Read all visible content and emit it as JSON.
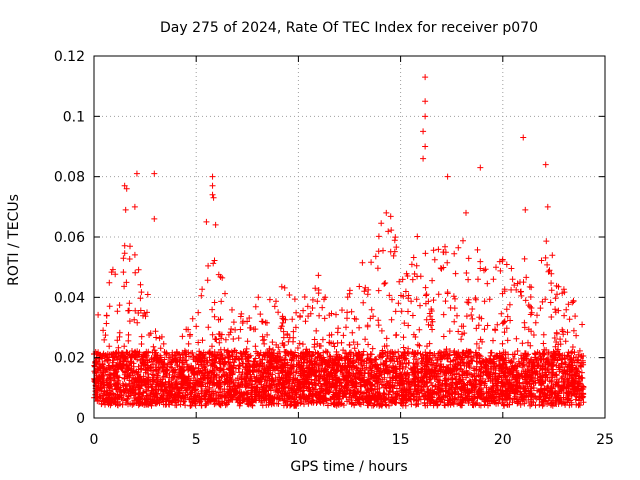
{
  "chart_data": {
    "type": "scatter",
    "title": "Day 275 of 2024, Rate Of TEC Index for receiver p070",
    "xlabel": "GPS time / hours",
    "ylabel": "ROTI / TECUs",
    "xlim": [
      0,
      25
    ],
    "ylim": [
      0,
      0.12
    ],
    "xticks": [
      "0",
      "5",
      "10",
      "15",
      "20",
      "25"
    ],
    "yticks": [
      "0",
      "0.02",
      "0.04",
      "0.06",
      "0.08",
      "0.1",
      "0.12"
    ],
    "grid": true,
    "marker": "+",
    "color": "#ff0000",
    "highlighted_points": [
      {
        "x": 16.2,
        "y": 0.113
      },
      {
        "x": 16.2,
        "y": 0.105
      },
      {
        "x": 16.2,
        "y": 0.1
      },
      {
        "x": 16.1,
        "y": 0.095
      },
      {
        "x": 16.2,
        "y": 0.09
      },
      {
        "x": 16.1,
        "y": 0.086
      },
      {
        "x": 21.0,
        "y": 0.093
      },
      {
        "x": 22.1,
        "y": 0.084
      },
      {
        "x": 18.9,
        "y": 0.083
      },
      {
        "x": 2.1,
        "y": 0.081
      },
      {
        "x": 2.95,
        "y": 0.081
      },
      {
        "x": 5.8,
        "y": 0.08
      },
      {
        "x": 17.3,
        "y": 0.08
      },
      {
        "x": 1.5,
        "y": 0.077
      },
      {
        "x": 1.6,
        "y": 0.076
      },
      {
        "x": 5.8,
        "y": 0.077
      },
      {
        "x": 5.8,
        "y": 0.074
      },
      {
        "x": 5.85,
        "y": 0.073
      },
      {
        "x": 2.0,
        "y": 0.07
      },
      {
        "x": 1.55,
        "y": 0.069
      },
      {
        "x": 2.95,
        "y": 0.066
      },
      {
        "x": 5.5,
        "y": 0.065
      },
      {
        "x": 5.95,
        "y": 0.064
      },
      {
        "x": 14.3,
        "y": 0.068
      },
      {
        "x": 18.2,
        "y": 0.068
      },
      {
        "x": 21.1,
        "y": 0.069
      },
      {
        "x": 22.2,
        "y": 0.07
      }
    ],
    "density_profile": {
      "x": [
        0,
        0.5,
        1,
        1.5,
        2,
        2.5,
        3,
        3.5,
        4,
        4.5,
        5,
        5.5,
        6,
        6.5,
        7,
        7.5,
        8,
        8.5,
        9,
        9.5,
        10,
        10.5,
        11,
        11.5,
        12,
        12.5,
        13,
        13.5,
        14,
        14.5,
        15,
        15.5,
        16,
        16.5,
        17,
        17.5,
        18,
        18.5,
        19,
        19.5,
        20,
        20.5,
        21,
        21.5,
        22,
        22.5,
        23,
        23.5,
        24
      ],
      "y_max": [
        0.032,
        0.045,
        0.05,
        0.06,
        0.055,
        0.045,
        0.035,
        0.025,
        0.022,
        0.03,
        0.035,
        0.05,
        0.055,
        0.04,
        0.035,
        0.035,
        0.042,
        0.04,
        0.045,
        0.045,
        0.04,
        0.042,
        0.05,
        0.035,
        0.035,
        0.045,
        0.052,
        0.06,
        0.065,
        0.067,
        0.064,
        0.062,
        0.065,
        0.055,
        0.058,
        0.06,
        0.06,
        0.058,
        0.055,
        0.048,
        0.055,
        0.05,
        0.055,
        0.05,
        0.06,
        0.055,
        0.045,
        0.04,
        0.03
      ]
    }
  }
}
